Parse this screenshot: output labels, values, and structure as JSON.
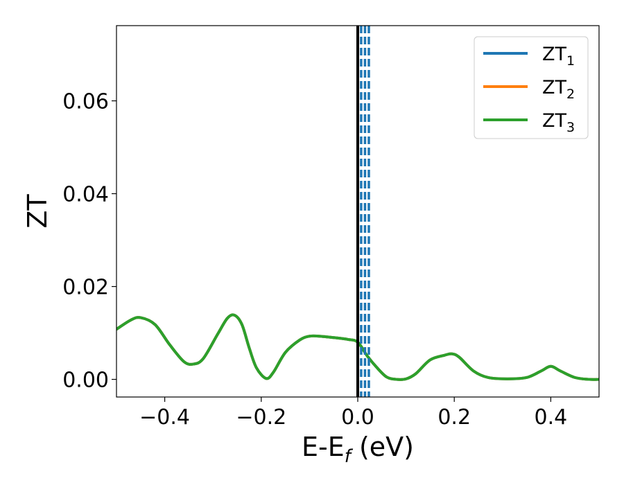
{
  "chart_data": {
    "type": "line",
    "xlabel_main": "E-E",
    "xlabel_sub": "f",
    "xlabel_unit": " (eV)",
    "ylabel": "ZT",
    "xlim": [
      -0.5,
      0.5
    ],
    "ylim": [
      -0.0038,
      0.0762
    ],
    "x_ticks": [
      -0.4,
      -0.2,
      0.0,
      0.2,
      0.4
    ],
    "x_tick_labels": [
      "−0.4",
      "−0.2",
      "0.0",
      "0.2",
      "0.4"
    ],
    "y_ticks": [
      0.0,
      0.02,
      0.04,
      0.06
    ],
    "y_tick_labels": [
      "0.00",
      "0.02",
      "0.04",
      "0.06"
    ],
    "grid": false,
    "legend_position": "top-right",
    "legend": [
      {
        "base": "ZT",
        "sub": "1",
        "color": "#1f77b4"
      },
      {
        "base": "ZT",
        "sub": "2",
        "color": "#ff7f0e"
      },
      {
        "base": "ZT",
        "sub": "3",
        "color": "#2ca02c"
      }
    ],
    "fermi_line": {
      "x": 0.0,
      "color": "#000000"
    },
    "dashed_lines": {
      "x": [
        0.007,
        0.015,
        0.023
      ],
      "color": "#1f77b4"
    },
    "series": [
      {
        "name": "ZT₁",
        "color": "#1f77b4",
        "x": [
          -0.5,
          -0.47,
          -0.45,
          -0.42,
          -0.39,
          -0.36,
          -0.34,
          -0.32,
          -0.29,
          -0.27,
          -0.255,
          -0.24,
          -0.225,
          -0.21,
          -0.19,
          -0.175,
          -0.15,
          -0.12,
          -0.1,
          -0.08,
          -0.05,
          -0.02,
          0.0,
          0.02,
          0.04,
          0.06,
          0.08,
          0.1,
          0.12,
          0.15,
          0.18,
          0.195,
          0.21,
          0.24,
          0.27,
          0.31,
          0.35,
          0.38,
          0.4,
          0.42,
          0.45,
          0.48,
          0.5
        ],
        "y": [
          0.0108,
          0.0128,
          0.0133,
          0.0118,
          0.0075,
          0.0038,
          0.0033,
          0.0045,
          0.0098,
          0.0132,
          0.0138,
          0.0118,
          0.0068,
          0.0025,
          0.0002,
          0.0015,
          0.0058,
          0.0085,
          0.0093,
          0.0093,
          0.009,
          0.0086,
          0.008,
          0.005,
          0.0025,
          0.0005,
          0.0,
          0.0001,
          0.0012,
          0.0042,
          0.0052,
          0.0055,
          0.0048,
          0.0018,
          0.0004,
          0.0001,
          0.0004,
          0.0018,
          0.0028,
          0.0018,
          0.0004,
          0.0,
          0.0
        ]
      },
      {
        "name": "ZT₂",
        "color": "#ff7f0e",
        "x": [
          -0.5,
          -0.47,
          -0.45,
          -0.42,
          -0.39,
          -0.36,
          -0.34,
          -0.32,
          -0.29,
          -0.27,
          -0.255,
          -0.24,
          -0.225,
          -0.21,
          -0.19,
          -0.175,
          -0.15,
          -0.12,
          -0.1,
          -0.08,
          -0.05,
          -0.02,
          0.0,
          0.02,
          0.04,
          0.06,
          0.08,
          0.1,
          0.12,
          0.15,
          0.18,
          0.195,
          0.21,
          0.24,
          0.27,
          0.31,
          0.35,
          0.38,
          0.4,
          0.42,
          0.45,
          0.48,
          0.5
        ],
        "y": [
          0.0108,
          0.0128,
          0.0133,
          0.0118,
          0.0075,
          0.0038,
          0.0033,
          0.0045,
          0.0098,
          0.0132,
          0.0138,
          0.0118,
          0.0068,
          0.0025,
          0.0002,
          0.0015,
          0.0058,
          0.0085,
          0.0093,
          0.0093,
          0.009,
          0.0086,
          0.008,
          0.005,
          0.0025,
          0.0005,
          0.0,
          0.0001,
          0.0012,
          0.0042,
          0.0052,
          0.0055,
          0.0048,
          0.0018,
          0.0004,
          0.0001,
          0.0004,
          0.0018,
          0.0028,
          0.0018,
          0.0004,
          0.0,
          0.0
        ]
      },
      {
        "name": "ZT₃",
        "color": "#2ca02c",
        "x": [
          -0.5,
          -0.47,
          -0.45,
          -0.42,
          -0.39,
          -0.36,
          -0.34,
          -0.32,
          -0.29,
          -0.27,
          -0.255,
          -0.24,
          -0.225,
          -0.21,
          -0.19,
          -0.175,
          -0.15,
          -0.12,
          -0.1,
          -0.08,
          -0.05,
          -0.02,
          0.0,
          0.02,
          0.04,
          0.06,
          0.08,
          0.1,
          0.12,
          0.15,
          0.18,
          0.195,
          0.21,
          0.24,
          0.27,
          0.31,
          0.35,
          0.38,
          0.4,
          0.42,
          0.45,
          0.48,
          0.5
        ],
        "y": [
          0.0108,
          0.0128,
          0.0133,
          0.0118,
          0.0075,
          0.0038,
          0.0033,
          0.0045,
          0.0098,
          0.0132,
          0.0138,
          0.0118,
          0.0068,
          0.0025,
          0.0002,
          0.0015,
          0.0058,
          0.0085,
          0.0093,
          0.0093,
          0.009,
          0.0086,
          0.008,
          0.005,
          0.0025,
          0.0005,
          0.0,
          0.0001,
          0.0012,
          0.0042,
          0.0052,
          0.0055,
          0.0048,
          0.0018,
          0.0004,
          0.0001,
          0.0004,
          0.0018,
          0.0028,
          0.0018,
          0.0004,
          0.0,
          0.0
        ]
      }
    ]
  }
}
